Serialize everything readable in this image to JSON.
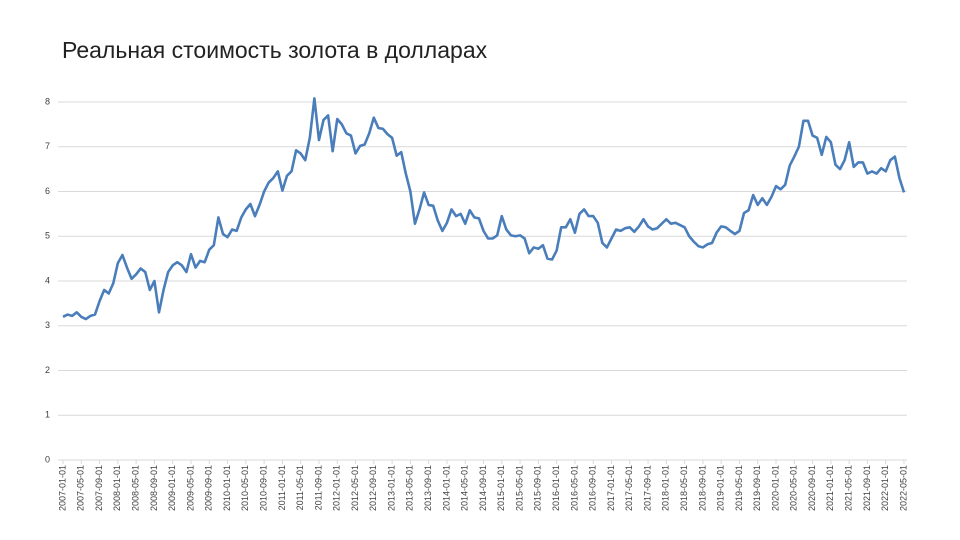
{
  "chart_data": {
    "type": "line",
    "title": "Реальная стоимость золота в долларах",
    "color": "#4a7ebb",
    "grid": true,
    "ylim": [
      0,
      8
    ],
    "yticks": [
      0,
      1,
      2,
      3,
      4,
      5,
      6,
      7,
      8
    ],
    "categories": [
      "2007-01-01",
      null,
      null,
      null,
      "2007-05-01",
      null,
      null,
      null,
      "2007-09-01",
      null,
      null,
      null,
      "2008-01-01",
      null,
      null,
      null,
      "2008-05-01",
      null,
      null,
      null,
      "2008-09-01",
      null,
      null,
      null,
      "2009-01-01",
      null,
      null,
      null,
      "2009-05-01",
      null,
      null,
      null,
      "2009-09-01",
      null,
      null,
      null,
      "2010-01-01",
      null,
      null,
      null,
      "2010-05-01",
      null,
      null,
      null,
      "2010-09-01",
      null,
      null,
      null,
      "2011-01-01",
      null,
      null,
      null,
      "2011-05-01",
      null,
      null,
      null,
      "2011-09-01",
      null,
      null,
      null,
      "2012-01-01",
      null,
      null,
      null,
      "2012-05-01",
      null,
      null,
      null,
      "2012-09-01",
      null,
      null,
      null,
      "2013-01-01",
      null,
      null,
      null,
      "2013-05-01",
      null,
      null,
      null,
      "2013-09-01",
      null,
      null,
      null,
      "2014-01-01",
      null,
      null,
      null,
      "2014-05-01",
      null,
      null,
      null,
      "2014-09-01",
      null,
      null,
      null,
      "2015-01-01",
      null,
      null,
      null,
      "2015-05-01",
      null,
      null,
      null,
      "2015-09-01",
      null,
      null,
      null,
      "2016-01-01",
      null,
      null,
      null,
      "2016-05-01",
      null,
      null,
      null,
      "2016-09-01",
      null,
      null,
      null,
      "2017-01-01",
      null,
      null,
      null,
      "2017-05-01",
      null,
      null,
      null,
      "2017-09-01",
      null,
      null,
      null,
      "2018-01-01",
      null,
      null,
      null,
      "2018-05-01",
      null,
      null,
      null,
      "2018-09-01",
      null,
      null,
      null,
      "2019-01-01",
      null,
      null,
      null,
      "2019-05-01",
      null,
      null,
      null,
      "2019-09-01",
      null,
      null,
      null,
      "2020-01-01",
      null,
      null,
      null,
      "2020-05-01",
      null,
      null,
      null,
      "2020-09-01",
      null,
      null,
      null,
      "2021-01-01",
      null,
      null,
      null,
      "2021-05-01",
      null,
      null,
      null,
      "2021-09-01",
      null,
      null,
      null,
      "2022-01-01",
      null,
      null,
      null,
      "2022-05-01"
    ],
    "values": [
      3.2,
      3.25,
      3.22,
      3.3,
      3.2,
      3.15,
      3.22,
      3.25,
      3.55,
      3.8,
      3.72,
      3.95,
      4.4,
      4.58,
      4.3,
      4.05,
      4.15,
      4.28,
      4.2,
      3.8,
      4.0,
      3.3,
      3.8,
      4.2,
      4.35,
      4.42,
      4.35,
      4.2,
      4.6,
      4.3,
      4.45,
      4.42,
      4.7,
      4.8,
      5.42,
      5.05,
      4.98,
      5.15,
      5.12,
      5.42,
      5.6,
      5.72,
      5.45,
      5.7,
      6.0,
      6.2,
      6.3,
      6.45,
      6.02,
      6.35,
      6.45,
      6.92,
      6.85,
      6.7,
      7.2,
      8.08,
      7.15,
      7.6,
      7.7,
      6.9,
      7.62,
      7.5,
      7.3,
      7.25,
      6.85,
      7.02,
      7.05,
      7.3,
      7.65,
      7.42,
      7.4,
      7.28,
      7.2,
      6.8,
      6.88,
      6.4,
      6.0,
      5.28,
      5.6,
      5.98,
      5.7,
      5.68,
      5.35,
      5.12,
      5.3,
      5.6,
      5.45,
      5.5,
      5.28,
      5.58,
      5.42,
      5.4,
      5.12,
      4.95,
      4.95,
      5.02,
      5.45,
      5.15,
      5.02,
      5.0,
      5.02,
      4.95,
      4.62,
      4.75,
      4.72,
      4.8,
      4.5,
      4.48,
      4.68,
      5.2,
      5.2,
      5.38,
      5.08,
      5.5,
      5.6,
      5.45,
      5.45,
      5.3,
      4.85,
      4.75,
      4.95,
      5.15,
      5.12,
      5.18,
      5.2,
      5.1,
      5.22,
      5.38,
      5.22,
      5.15,
      5.18,
      5.28,
      5.38,
      5.28,
      5.3,
      5.25,
      5.2,
      5.0,
      4.88,
      4.78,
      4.75,
      4.82,
      4.85,
      5.08,
      5.22,
      5.2,
      5.12,
      5.05,
      5.12,
      5.52,
      5.58,
      5.92,
      5.7,
      5.85,
      5.7,
      5.88,
      6.12,
      6.05,
      6.15,
      6.58,
      6.78,
      7.0,
      7.58,
      7.58,
      7.25,
      7.2,
      6.82,
      7.22,
      7.1,
      6.6,
      6.5,
      6.7,
      7.1,
      6.55,
      6.65,
      6.65,
      6.4,
      6.45,
      6.4,
      6.52,
      6.45,
      6.7,
      6.78,
      6.3,
      5.98
    ]
  }
}
